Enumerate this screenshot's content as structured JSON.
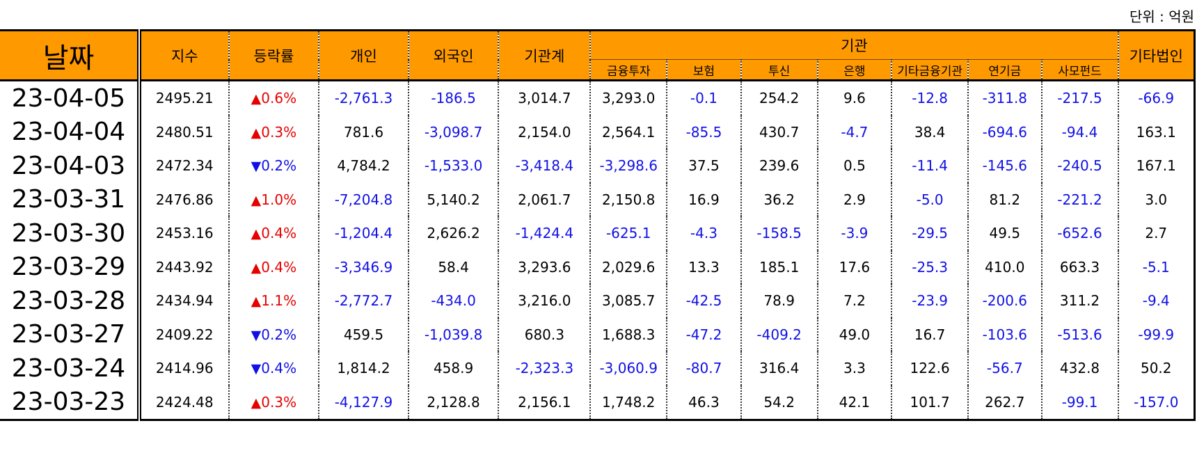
{
  "unit_label": "단위 : 억원",
  "header": {
    "date": "날짜",
    "index": "지수",
    "change": "등락률",
    "individual": "개인",
    "foreign": "외국인",
    "institution_total": "기관계",
    "institution": "기관",
    "sub": [
      "금융투자",
      "보험",
      "투신",
      "은행",
      "기타금융기관",
      "연기금",
      "사모펀드"
    ],
    "other_corp": "기타법인"
  },
  "colors": {
    "header_bg": "#ff9900",
    "up": "#e60000",
    "down": "#1010e6",
    "negative": "#1010e6"
  },
  "rows": [
    {
      "date": "23-04-05",
      "index": "2495.21",
      "dir": "up",
      "pct": "0.6%",
      "vals": [
        "-2,761.3",
        "-186.5",
        "3,014.7",
        "3,293.0",
        "-0.1",
        "254.2",
        "9.6",
        "-12.8",
        "-311.8",
        "-217.5",
        "-66.9"
      ]
    },
    {
      "date": "23-04-04",
      "index": "2480.51",
      "dir": "up",
      "pct": "0.3%",
      "vals": [
        "781.6",
        "-3,098.7",
        "2,154.0",
        "2,564.1",
        "-85.5",
        "430.7",
        "-4.7",
        "38.4",
        "-694.6",
        "-94.4",
        "163.1"
      ]
    },
    {
      "date": "23-04-03",
      "index": "2472.34",
      "dir": "down",
      "pct": "0.2%",
      "vals": [
        "4,784.2",
        "-1,533.0",
        "-3,418.4",
        "-3,298.6",
        "37.5",
        "239.6",
        "0.5",
        "-11.4",
        "-145.6",
        "-240.5",
        "167.1"
      ]
    },
    {
      "date": "23-03-31",
      "index": "2476.86",
      "dir": "up",
      "pct": "1.0%",
      "vals": [
        "-7,204.8",
        "5,140.2",
        "2,061.7",
        "2,150.8",
        "16.9",
        "36.2",
        "2.9",
        "-5.0",
        "81.2",
        "-221.2",
        "3.0"
      ]
    },
    {
      "date": "23-03-30",
      "index": "2453.16",
      "dir": "up",
      "pct": "0.4%",
      "vals": [
        "-1,204.4",
        "2,626.2",
        "-1,424.4",
        "-625.1",
        "-4.3",
        "-158.5",
        "-3.9",
        "-29.5",
        "49.5",
        "-652.6",
        "2.7"
      ]
    },
    {
      "date": "23-03-29",
      "index": "2443.92",
      "dir": "up",
      "pct": "0.4%",
      "vals": [
        "-3,346.9",
        "58.4",
        "3,293.6",
        "2,029.6",
        "13.3",
        "185.1",
        "17.6",
        "-25.3",
        "410.0",
        "663.3",
        "-5.1"
      ]
    },
    {
      "date": "23-03-28",
      "index": "2434.94",
      "dir": "up",
      "pct": "1.1%",
      "vals": [
        "-2,772.7",
        "-434.0",
        "3,216.0",
        "3,085.7",
        "-42.5",
        "78.9",
        "7.2",
        "-23.9",
        "-200.6",
        "311.2",
        "-9.4"
      ]
    },
    {
      "date": "23-03-27",
      "index": "2409.22",
      "dir": "down",
      "pct": "0.2%",
      "vals": [
        "459.5",
        "-1,039.8",
        "680.3",
        "1,688.3",
        "-47.2",
        "-409.2",
        "49.0",
        "16.7",
        "-103.6",
        "-513.6",
        "-99.9"
      ]
    },
    {
      "date": "23-03-24",
      "index": "2414.96",
      "dir": "down",
      "pct": "0.4%",
      "vals": [
        "1,814.2",
        "458.9",
        "-2,323.3",
        "-3,060.9",
        "-80.7",
        "316.4",
        "3.3",
        "122.6",
        "-56.7",
        "432.8",
        "50.2"
      ]
    },
    {
      "date": "23-03-23",
      "index": "2424.48",
      "dir": "up",
      "pct": "0.3%",
      "vals": [
        "-4,127.9",
        "2,128.8",
        "2,156.1",
        "1,748.2",
        "46.3",
        "54.2",
        "42.1",
        "101.7",
        "262.7",
        "-99.1",
        "-157.0"
      ]
    }
  ]
}
